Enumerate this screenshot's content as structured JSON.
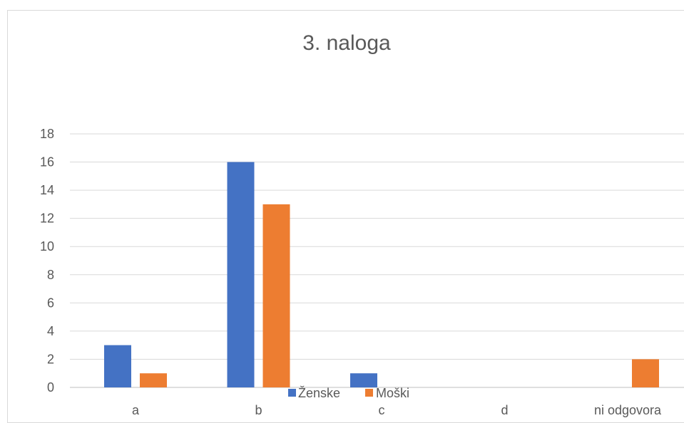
{
  "chart_data": {
    "type": "bar",
    "title": "3. naloga",
    "categories": [
      "a",
      "b",
      "c",
      "d",
      "ni odgovora"
    ],
    "series": [
      {
        "name": "Ženske",
        "values": [
          3,
          16,
          1,
          0,
          0
        ],
        "color": "#4472C4"
      },
      {
        "name": "Moški",
        "values": [
          1,
          13,
          0,
          0,
          2
        ],
        "color": "#ED7D31"
      }
    ],
    "ylim": [
      0,
      18
    ],
    "yticks": [
      0,
      2,
      4,
      6,
      8,
      10,
      12,
      14,
      16,
      18
    ],
    "grid": true,
    "legend": "bottom",
    "colors": {
      "gridline": "#d9d9d9",
      "axis": "#bfbfbf",
      "text": "#595959"
    }
  }
}
